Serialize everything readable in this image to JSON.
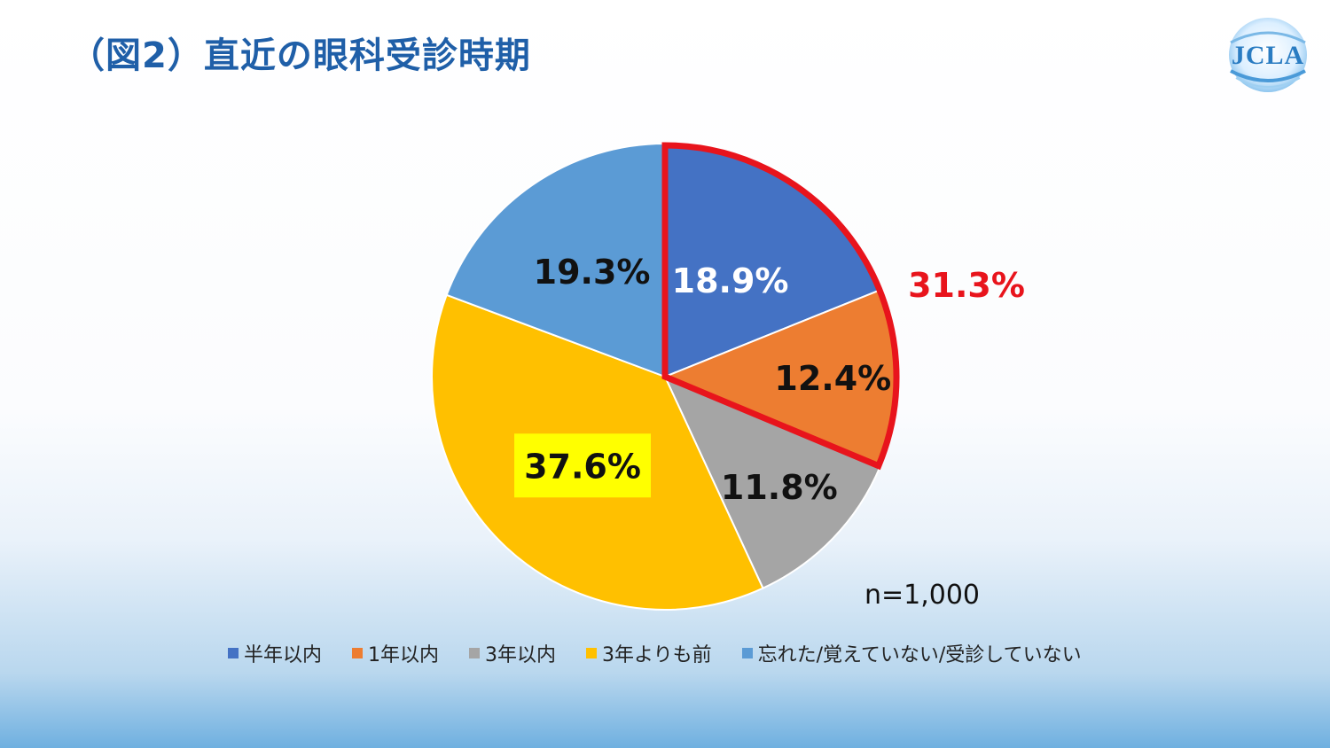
{
  "title": "（図2）直近の眼科受診時期",
  "logo": {
    "text": "JCLA"
  },
  "chart_data": {
    "type": "pie",
    "start_angle_deg": 0,
    "direction": "clockwise",
    "slices": [
      {
        "label": "半年以内",
        "value": 18.9,
        "display": "18.9%",
        "color": "#4472c4",
        "text_color": "#ffffff"
      },
      {
        "label": "1年以内",
        "value": 12.4,
        "display": "12.4%",
        "color": "#ed7d31",
        "text_color": "#111111"
      },
      {
        "label": "3年以内",
        "value": 11.8,
        "display": "11.8%",
        "color": "#a5a5a5",
        "text_color": "#111111"
      },
      {
        "label": "3年よりも前",
        "value": 37.6,
        "display": "37.6%",
        "color": "#ffc000",
        "text_color": "#111111",
        "label_highlight": "#ffff00"
      },
      {
        "label": "忘れた/覚えていない/受診していない",
        "value": 19.3,
        "display": "19.3%",
        "color": "#5b9bd5",
        "text_color": "#111111"
      }
    ],
    "annotation": {
      "text": "31.3%",
      "color": "#e8141c",
      "highlight_slices": [
        0,
        1
      ]
    },
    "sample_note": "n=1,000",
    "legend_position": "bottom"
  }
}
